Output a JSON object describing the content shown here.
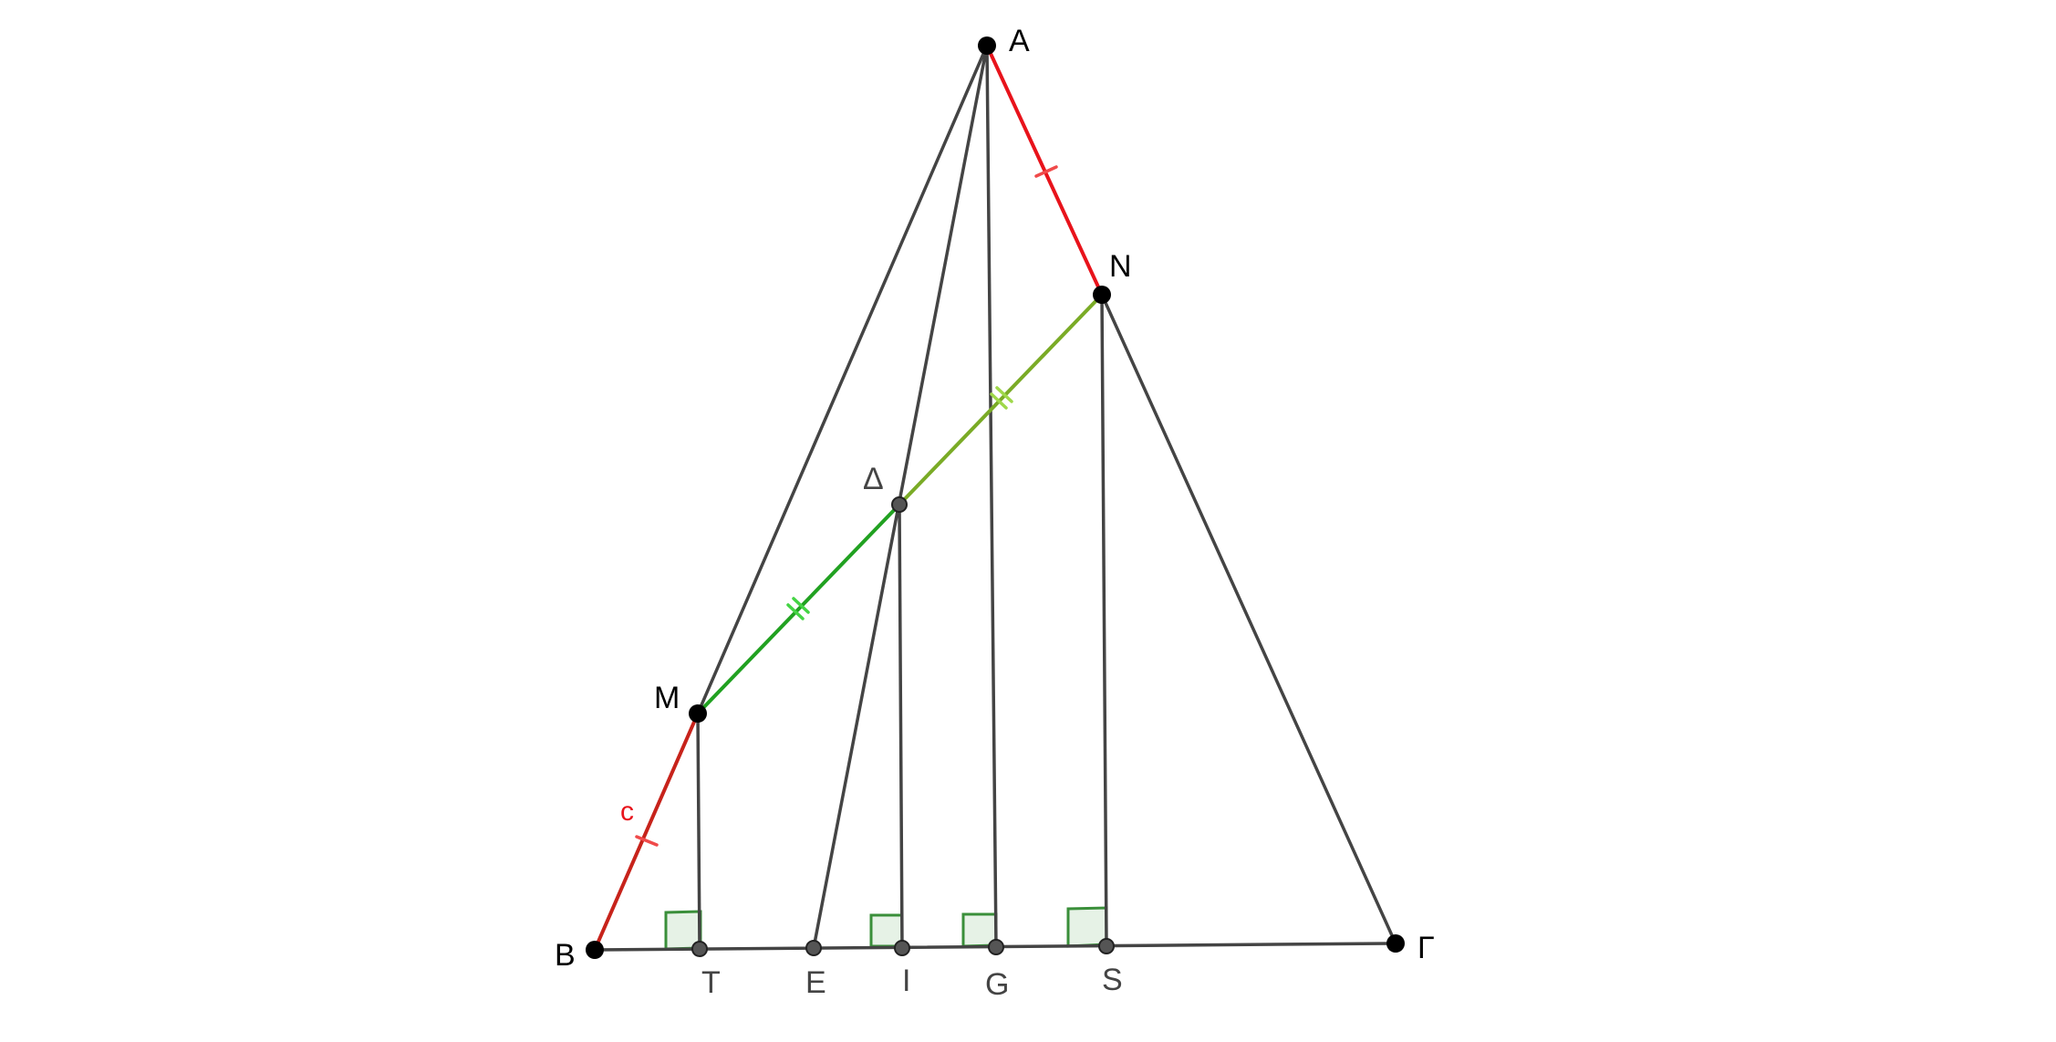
{
  "diagram": {
    "points": {
      "A": {
        "label": "A"
      },
      "N": {
        "label": "N"
      },
      "D": {
        "label": "Δ"
      },
      "M": {
        "label": "M"
      },
      "B": {
        "label": "B"
      },
      "G_gamma": {
        "label": "Γ"
      },
      "T": {
        "label": "T"
      },
      "E": {
        "label": "E"
      },
      "I": {
        "label": "I"
      },
      "Gp": {
        "label": "G"
      },
      "S": {
        "label": "S"
      }
    },
    "segment_labels": {
      "c": "c"
    },
    "colors": {
      "background": "#ffffff",
      "line": "#444444",
      "red_segment": "#e8131b",
      "dark_red_segment": "#c7231b",
      "green_segment": "#21a121",
      "olive_segment": "#7aab26",
      "right_angle_fill": "#e6f2e6",
      "right_angle_stroke": "#3a8f3a",
      "point": "#000000",
      "point_grey": "#555555"
    }
  }
}
